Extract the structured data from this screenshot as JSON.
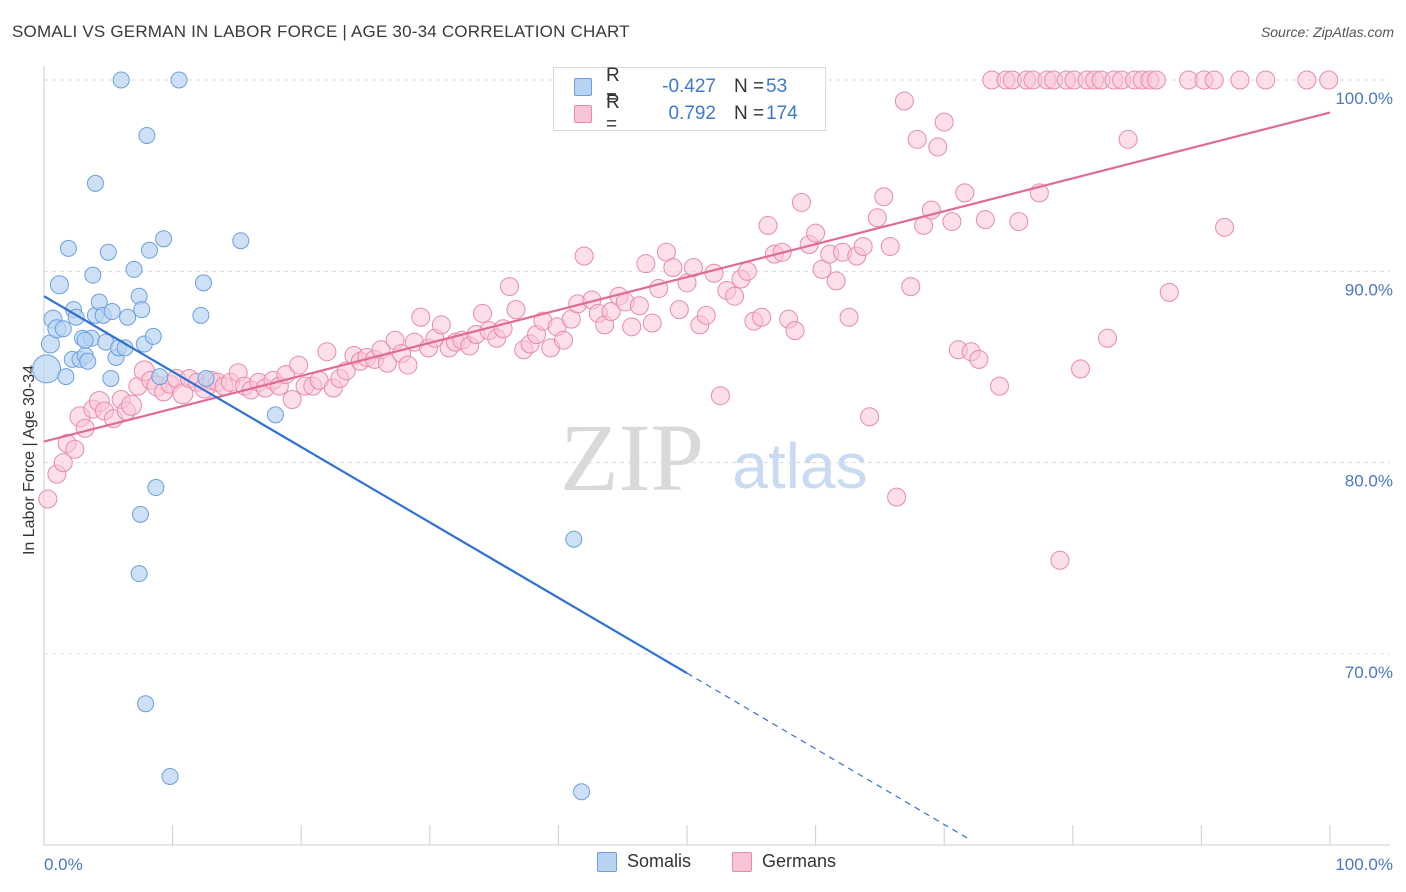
{
  "header": {
    "title": "SOMALI VS GERMAN IN LABOR FORCE | AGE 30-34 CORRELATION CHART",
    "source": "Source: ZipAtlas.com"
  },
  "watermark": {
    "zip": "ZIP",
    "atlas": "atlas"
  },
  "legend": {
    "somali": {
      "r_label": "R =",
      "r_value": "-0.427",
      "n_label": "N =",
      "n_value": "53"
    },
    "german": {
      "r_label": "R =",
      "r_value": "0.792",
      "n_label": "N =",
      "n_value": "174"
    }
  },
  "bottom_legend": {
    "somali": "Somalis",
    "german": "Germans"
  },
  "colors": {
    "somali_fill": "#b8d3f2",
    "somali_stroke": "#6b9fe0",
    "somali_line": "#2f72d4",
    "german_fill": "#f9c4d6",
    "german_stroke": "#e88aab",
    "german_line": "#e06a96",
    "tick": "#4a78c2",
    "grid": "#dcdcdc"
  },
  "chart_data": {
    "type": "scatter",
    "title": "SOMALI VS GERMAN IN LABOR FORCE | AGE 30-34 CORRELATION CHART",
    "xlabel": "",
    "ylabel": "In Labor Force | Age 30-34",
    "xlim": [
      0,
      100
    ],
    "ylim": [
      60,
      101.5
    ],
    "x_tick_labels": [
      "0.0%",
      "100.0%"
    ],
    "y_ticks": [
      70,
      80,
      90,
      100
    ],
    "y_tick_labels": [
      "70.0%",
      "80.0%",
      "90.0%",
      "100.0%"
    ],
    "grid": true,
    "series": [
      {
        "name": "Somalis",
        "r": -0.427,
        "n": 53,
        "trend": {
          "x": [
            0,
            50
          ],
          "y": [
            88.7,
            69.0
          ]
        },
        "trend_dashed": {
          "x": [
            50,
            72
          ],
          "y": [
            69.0,
            60.3
          ]
        },
        "points": [
          [
            0.2,
            84.9,
            14
          ],
          [
            0.5,
            86.2,
            9
          ],
          [
            0.7,
            87.5,
            9
          ],
          [
            1.0,
            87.0,
            9
          ],
          [
            1.2,
            89.3,
            9
          ],
          [
            1.5,
            87.0,
            8
          ],
          [
            1.7,
            84.5,
            8
          ],
          [
            1.9,
            91.2,
            8
          ],
          [
            2.2,
            85.4,
            8
          ],
          [
            2.3,
            88.0,
            8
          ],
          [
            2.5,
            87.6,
            8
          ],
          [
            2.8,
            85.4,
            8
          ],
          [
            3.0,
            86.5,
            8
          ],
          [
            3.2,
            85.6,
            8
          ],
          [
            3.4,
            85.3,
            8
          ],
          [
            3.7,
            86.5,
            8
          ],
          [
            3.8,
            89.8,
            8
          ],
          [
            4.0,
            87.7,
            8
          ],
          [
            4.3,
            88.4,
            8
          ],
          [
            4.6,
            87.7,
            8
          ],
          [
            4.8,
            86.3,
            8
          ],
          [
            5.0,
            91.0,
            8
          ],
          [
            5.2,
            84.4,
            8
          ],
          [
            5.3,
            87.9,
            8
          ],
          [
            5.6,
            85.5,
            8
          ],
          [
            5.8,
            86.0,
            8
          ],
          [
            6.0,
            100.0,
            8
          ],
          [
            6.3,
            86.0,
            8
          ],
          [
            6.5,
            87.6,
            8
          ],
          [
            7.0,
            90.1,
            8
          ],
          [
            7.4,
            88.7,
            8
          ],
          [
            7.6,
            88.0,
            8
          ],
          [
            7.8,
            86.2,
            8
          ],
          [
            8.0,
            97.1,
            8
          ],
          [
            8.2,
            91.1,
            8
          ],
          [
            8.5,
            86.6,
            8
          ],
          [
            8.7,
            78.7,
            8
          ],
          [
            9.0,
            84.5,
            8
          ],
          [
            9.3,
            91.7,
            8
          ],
          [
            10.5,
            100.0,
            8
          ],
          [
            12.2,
            87.7,
            8
          ],
          [
            12.4,
            89.4,
            8
          ],
          [
            12.6,
            84.4,
            8
          ],
          [
            15.3,
            91.6,
            8
          ],
          [
            18.0,
            82.5,
            8
          ],
          [
            4.0,
            94.6,
            8
          ],
          [
            7.5,
            77.3,
            8
          ],
          [
            7.4,
            74.2,
            8
          ],
          [
            7.9,
            67.4,
            8
          ],
          [
            9.8,
            63.6,
            8
          ],
          [
            41.8,
            62.8,
            8
          ],
          [
            41.2,
            76.0,
            8
          ],
          [
            3.2,
            86.4,
            8
          ]
        ]
      },
      {
        "name": "Germans",
        "r": 0.792,
        "n": 174,
        "trend": {
          "x": [
            0,
            100
          ],
          "y": [
            81.1,
            98.3
          ]
        },
        "points": [
          [
            0.3,
            78.1,
            9
          ],
          [
            1.0,
            79.4,
            9
          ],
          [
            1.5,
            80.0,
            9
          ],
          [
            1.8,
            81.0,
            9
          ],
          [
            2.4,
            80.7,
            9
          ],
          [
            2.8,
            82.4,
            10
          ],
          [
            3.2,
            81.8,
            9
          ],
          [
            3.8,
            82.8,
            9
          ],
          [
            4.3,
            83.2,
            10
          ],
          [
            4.7,
            82.7,
            9
          ],
          [
            5.4,
            82.3,
            9
          ],
          [
            6.0,
            83.3,
            9
          ],
          [
            6.4,
            82.7,
            9
          ],
          [
            6.8,
            83.0,
            10
          ],
          [
            7.3,
            84.0,
            9
          ],
          [
            7.8,
            84.8,
            10
          ],
          [
            8.3,
            84.3,
            9
          ],
          [
            8.8,
            84.0,
            10
          ],
          [
            9.3,
            83.7,
            9
          ],
          [
            9.8,
            84.1,
            9
          ],
          [
            10.3,
            84.4,
            9
          ],
          [
            10.8,
            83.6,
            10
          ],
          [
            11.3,
            84.4,
            9
          ],
          [
            11.9,
            84.2,
            9
          ],
          [
            12.5,
            83.9,
            10
          ],
          [
            13.0,
            84.3,
            9
          ],
          [
            13.5,
            84.2,
            9
          ],
          [
            14.0,
            84.0,
            9
          ],
          [
            14.5,
            84.2,
            9
          ],
          [
            15.1,
            84.7,
            9
          ],
          [
            15.6,
            84.0,
            9
          ],
          [
            16.1,
            83.8,
            9
          ],
          [
            16.7,
            84.2,
            9
          ],
          [
            17.2,
            83.9,
            9
          ],
          [
            17.8,
            84.3,
            9
          ],
          [
            18.3,
            84.0,
            9
          ],
          [
            18.8,
            84.6,
            9
          ],
          [
            19.3,
            83.3,
            9
          ],
          [
            19.8,
            85.1,
            9
          ],
          [
            20.3,
            84.0,
            9
          ],
          [
            20.9,
            84.0,
            9
          ],
          [
            21.4,
            84.3,
            9
          ],
          [
            22.0,
            85.8,
            9
          ],
          [
            22.5,
            83.9,
            9
          ],
          [
            23.0,
            84.4,
            9
          ],
          [
            23.5,
            84.8,
            9
          ],
          [
            24.1,
            85.6,
            9
          ],
          [
            24.6,
            85.3,
            9
          ],
          [
            25.1,
            85.5,
            9
          ],
          [
            25.7,
            85.4,
            9
          ],
          [
            26.2,
            85.9,
            9
          ],
          [
            26.7,
            85.2,
            9
          ],
          [
            27.3,
            86.4,
            9
          ],
          [
            27.8,
            85.7,
            9
          ],
          [
            28.3,
            85.1,
            9
          ],
          [
            28.8,
            86.3,
            9
          ],
          [
            29.3,
            87.6,
            9
          ],
          [
            29.9,
            86.0,
            9
          ],
          [
            30.4,
            86.5,
            9
          ],
          [
            30.9,
            87.2,
            9
          ],
          [
            31.5,
            86.0,
            9
          ],
          [
            32.0,
            86.3,
            9
          ],
          [
            32.5,
            86.4,
            9
          ],
          [
            33.1,
            86.1,
            9
          ],
          [
            33.6,
            86.7,
            9
          ],
          [
            34.1,
            87.8,
            9
          ],
          [
            34.6,
            86.9,
            9
          ],
          [
            35.2,
            86.5,
            9
          ],
          [
            35.7,
            87.0,
            9
          ],
          [
            36.2,
            89.2,
            9
          ],
          [
            36.7,
            88.0,
            9
          ],
          [
            37.3,
            85.9,
            9
          ],
          [
            37.8,
            86.2,
            9
          ],
          [
            38.3,
            86.7,
            9
          ],
          [
            38.8,
            87.4,
            9
          ],
          [
            39.4,
            86.0,
            9
          ],
          [
            39.9,
            87.1,
            9
          ],
          [
            40.4,
            86.4,
            9
          ],
          [
            41.0,
            87.5,
            9
          ],
          [
            41.5,
            88.3,
            9
          ],
          [
            42.0,
            90.8,
            9
          ],
          [
            42.6,
            88.5,
            9
          ],
          [
            43.1,
            87.8,
            9
          ],
          [
            43.6,
            87.2,
            9
          ],
          [
            44.1,
            87.9,
            9
          ],
          [
            44.7,
            88.7,
            9
          ],
          [
            45.2,
            88.4,
            9
          ],
          [
            45.7,
            87.1,
            9
          ],
          [
            46.3,
            88.2,
            9
          ],
          [
            46.8,
            90.4,
            9
          ],
          [
            47.3,
            87.3,
            9
          ],
          [
            47.8,
            89.1,
            9
          ],
          [
            48.4,
            91.0,
            9
          ],
          [
            48.9,
            90.2,
            9
          ],
          [
            49.4,
            88.0,
            9
          ],
          [
            50.0,
            89.4,
            9
          ],
          [
            50.5,
            90.2,
            9
          ],
          [
            51.0,
            87.2,
            9
          ],
          [
            51.5,
            87.7,
            9
          ],
          [
            52.1,
            89.9,
            9
          ],
          [
            52.6,
            83.5,
            9
          ],
          [
            53.1,
            89.0,
            9
          ],
          [
            53.7,
            88.7,
            9
          ],
          [
            54.2,
            89.6,
            9
          ],
          [
            54.7,
            90.0,
            9
          ],
          [
            55.2,
            87.4,
            9
          ],
          [
            55.8,
            87.6,
            9
          ],
          [
            56.3,
            92.4,
            9
          ],
          [
            56.8,
            90.9,
            9
          ],
          [
            57.4,
            91.0,
            9
          ],
          [
            57.9,
            87.5,
            9
          ],
          [
            58.4,
            86.9,
            9
          ],
          [
            58.9,
            93.6,
            9
          ],
          [
            59.5,
            91.4,
            9
          ],
          [
            60.0,
            92.0,
            9
          ],
          [
            60.5,
            90.1,
            9
          ],
          [
            61.1,
            90.9,
            9
          ],
          [
            61.6,
            89.5,
            9
          ],
          [
            62.1,
            91.0,
            9
          ],
          [
            62.6,
            87.6,
            9
          ],
          [
            63.2,
            90.8,
            9
          ],
          [
            63.7,
            91.3,
            9
          ],
          [
            64.2,
            82.4,
            9
          ],
          [
            64.8,
            92.8,
            9
          ],
          [
            65.3,
            93.9,
            9
          ],
          [
            65.8,
            91.3,
            9
          ],
          [
            66.3,
            78.2,
            9
          ],
          [
            66.9,
            98.9,
            9
          ],
          [
            67.4,
            89.2,
            9
          ],
          [
            67.9,
            96.9,
            9
          ],
          [
            68.4,
            92.4,
            9
          ],
          [
            69.0,
            93.2,
            9
          ],
          [
            69.5,
            96.5,
            9
          ],
          [
            70.0,
            97.8,
            9
          ],
          [
            70.6,
            92.6,
            9
          ],
          [
            71.1,
            85.9,
            9
          ],
          [
            71.6,
            94.1,
            9
          ],
          [
            72.1,
            85.8,
            9
          ],
          [
            72.7,
            85.4,
            9
          ],
          [
            73.2,
            92.7,
            9
          ],
          [
            73.7,
            100.0,
            9
          ],
          [
            74.3,
            84.0,
            9
          ],
          [
            74.8,
            100.0,
            9
          ],
          [
            75.3,
            100.0,
            9
          ],
          [
            75.8,
            92.6,
            9
          ],
          [
            76.4,
            100.0,
            9
          ],
          [
            76.9,
            100.0,
            9
          ],
          [
            77.4,
            94.1,
            9
          ],
          [
            78.0,
            100.0,
            9
          ],
          [
            78.5,
            100.0,
            9
          ],
          [
            79.0,
            74.9,
            9
          ],
          [
            79.5,
            100.0,
            9
          ],
          [
            80.1,
            100.0,
            9
          ],
          [
            80.6,
            84.9,
            9
          ],
          [
            81.1,
            100.0,
            9
          ],
          [
            81.7,
            100.0,
            9
          ],
          [
            82.2,
            100.0,
            9
          ],
          [
            82.7,
            86.5,
            9
          ],
          [
            83.2,
            100.0,
            9
          ],
          [
            83.8,
            100.0,
            9
          ],
          [
            84.3,
            96.9,
            9
          ],
          [
            84.8,
            100.0,
            9
          ],
          [
            85.4,
            100.0,
            9
          ],
          [
            86.0,
            100.0,
            9
          ],
          [
            86.5,
            100.0,
            9
          ],
          [
            87.5,
            88.9,
            9
          ],
          [
            89.0,
            100.0,
            9
          ],
          [
            90.2,
            100.0,
            9
          ],
          [
            91.0,
            100.0,
            9
          ],
          [
            91.8,
            92.3,
            9
          ],
          [
            93.0,
            100.0,
            9
          ],
          [
            95.0,
            100.0,
            9
          ],
          [
            98.2,
            100.0,
            9
          ],
          [
            99.9,
            100.0,
            9
          ]
        ]
      }
    ]
  }
}
